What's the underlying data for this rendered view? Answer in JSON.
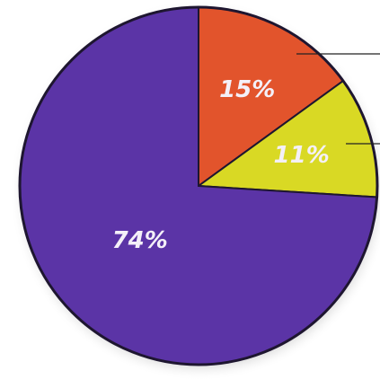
{
  "chart_data": {
    "type": "pie",
    "categories": [
      null,
      null,
      null
    ],
    "values": [
      15,
      11,
      74
    ],
    "value_labels": [
      "15%",
      "11%",
      "74%"
    ],
    "colors": [
      "#e2542c",
      "#d9d924",
      "#5b34a6"
    ]
  }
}
